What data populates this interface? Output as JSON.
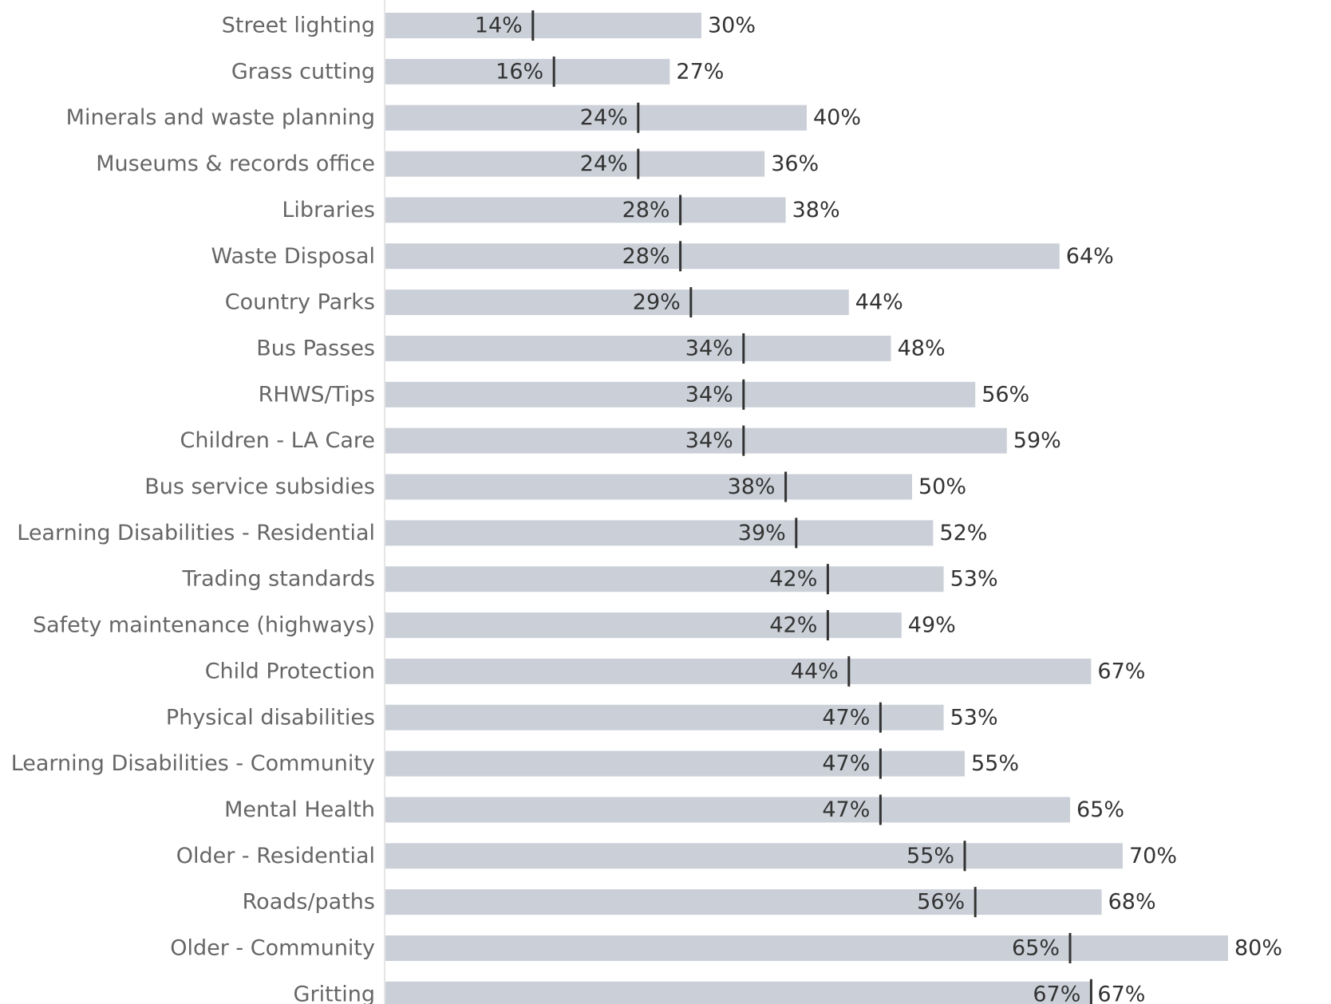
{
  "chart_data": {
    "type": "bar",
    "title": "",
    "xlabel": "",
    "ylabel": "",
    "xlim": [
      0,
      80
    ],
    "grid": false,
    "legend": "none",
    "value_format": "{v}%",
    "categories": [
      "Street lighting",
      "Grass cutting",
      "Minerals and waste planning",
      "Museums & records office",
      "Libraries",
      "Waste Disposal",
      "Country Parks",
      "Bus Passes",
      "RHWS/Tips",
      "Children - LA Care",
      "Bus service subsidies",
      "Learning Disabilities - Residential",
      "Trading standards",
      "Safety maintenance (highways)",
      "Child Protection",
      "Physical disabilities",
      "Learning Disabilities - Community",
      "Mental Health",
      "Older - Residential",
      "Roads/paths",
      "Older - Community",
      "Gritting"
    ],
    "bar_values": [
      30,
      27,
      40,
      36,
      38,
      64,
      44,
      48,
      56,
      59,
      50,
      52,
      53,
      49,
      67,
      53,
      55,
      65,
      70,
      68,
      80,
      67
    ],
    "marker_values": [
      14,
      16,
      24,
      24,
      28,
      28,
      29,
      34,
      34,
      34,
      38,
      39,
      42,
      42,
      44,
      47,
      47,
      47,
      55,
      56,
      65,
      67
    ],
    "colors": {
      "bar": "#cbd0d8",
      "marker": "#333333",
      "axis": "#dddddd",
      "category_text": "#666666",
      "value_text": "#333333"
    }
  }
}
